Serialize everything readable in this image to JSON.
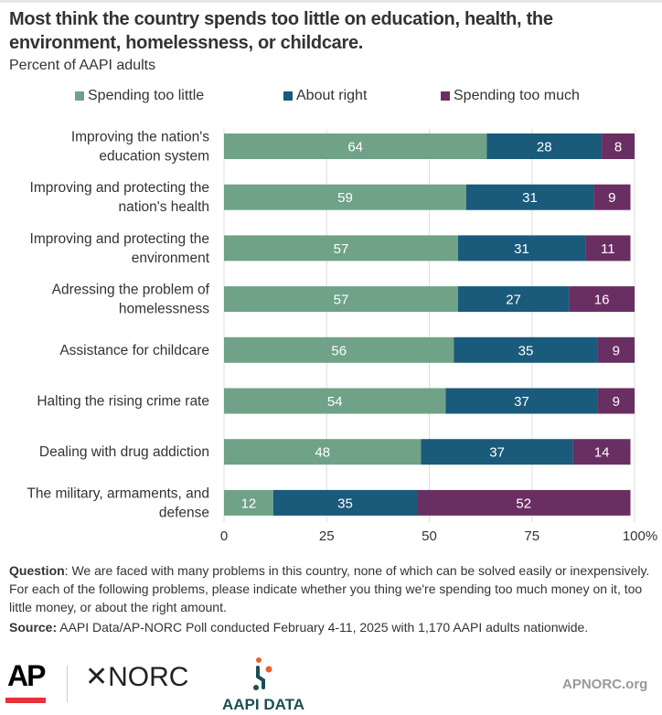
{
  "chart_data": {
    "type": "bar",
    "stacked": true,
    "orientation": "horizontal",
    "title": "Most think the country spends too little on education, health, the environment, homelessness, or childcare.",
    "subtitle": "Percent of AAPI adults",
    "categories": [
      [
        "Improving the nation's",
        "education system"
      ],
      [
        "Improving and protecting the",
        "nation's health"
      ],
      [
        "Improving and protecting the",
        "environment"
      ],
      [
        "Adressing the problem of",
        "homelessness"
      ],
      [
        "Assistance for childcare"
      ],
      [
        "Halting the rising crime rate"
      ],
      [
        "Dealing with drug addiction"
      ],
      [
        "The military, armaments, and",
        "defense"
      ]
    ],
    "series": [
      {
        "name": "Spending too little",
        "color": "#6fa287",
        "values": [
          64,
          59,
          57,
          57,
          56,
          54,
          48,
          12
        ]
      },
      {
        "name": "About right",
        "color": "#1a5a7a",
        "values": [
          28,
          31,
          31,
          27,
          35,
          37,
          37,
          35
        ]
      },
      {
        "name": "Spending too much",
        "color": "#6a2f62",
        "values": [
          8,
          9,
          11,
          16,
          9,
          9,
          14,
          52
        ]
      }
    ],
    "xlim": [
      0,
      100
    ],
    "xticks": [
      "0",
      "25",
      "50",
      "75",
      "100%"
    ],
    "grid": true,
    "legend": "top"
  },
  "notes": {
    "question_label": "Question",
    "question": ": We are faced with many problems in this country, none of which can be solved easily or inexpensively. For each of the following problems, please indicate whether you thing we're spending too much money on it, too little money, or about the right amount.",
    "source_label": "Source:",
    "source": " AAPI Data/AP-NORC Poll conducted February 4-11, 2025 with 1,170 AAPI adults nationwide."
  },
  "footer": {
    "ap": "AP",
    "norc": "✕NORC",
    "aapi": "AAPI DATA",
    "website": "APNORC.org"
  }
}
